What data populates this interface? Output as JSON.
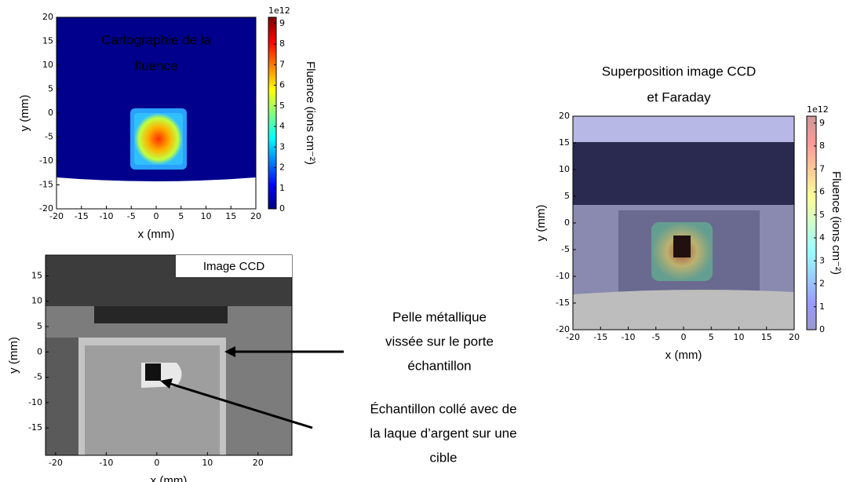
{
  "chart_data": [
    {
      "type": "heatmap",
      "title_lines": [
        "Cartographie de la",
        "fluence"
      ],
      "xlabel": "x (mm)",
      "ylabel": "y (mm)",
      "xlim": [
        -20,
        20
      ],
      "ylim": [
        -20,
        20
      ],
      "xticks": [
        -20,
        -15,
        -10,
        -5,
        0,
        5,
        10,
        15,
        20
      ],
      "yticks": [
        -20,
        -15,
        -10,
        -5,
        0,
        5,
        10,
        15,
        20
      ],
      "colorbar": {
        "label": "Fluence (ions cm⁻²)",
        "offset_label": "1e12",
        "lim": [
          0,
          9.3
        ],
        "ticks": [
          0,
          1,
          2,
          3,
          4,
          5,
          6,
          7,
          8,
          9
        ],
        "colormap": "jet"
      }
    },
    {
      "type": "image",
      "label": "Image CCD",
      "xlabel": "x (mm)",
      "ylabel": "y (mm)",
      "xlim": [
        -22,
        26.7
      ],
      "ylim": [
        -20.4,
        19.1
      ],
      "xticks": [
        -20,
        -10,
        0,
        10,
        20
      ],
      "yticks": [
        -15,
        -10,
        -5,
        0,
        5,
        10,
        15
      ]
    },
    {
      "type": "heatmap",
      "title_lines": [
        "Superposition image CCD",
        "et Faraday"
      ],
      "xlabel": "x (mm)",
      "ylabel": "y (mm)",
      "xlim": [
        -20,
        20
      ],
      "ylim": [
        -20,
        20
      ],
      "xticks": [
        -20,
        -15,
        -10,
        -5,
        0,
        5,
        10,
        15,
        20
      ],
      "yticks": [
        -20,
        -15,
        -10,
        -5,
        0,
        5,
        10,
        15,
        20
      ],
      "colorbar": {
        "label": "Fluence (ions cm⁻²)",
        "offset_label": "1e12",
        "lim": [
          0,
          9.3
        ],
        "ticks": [
          0,
          1,
          2,
          3,
          4,
          5,
          6,
          7,
          8,
          9
        ],
        "colormap": "jet",
        "alpha": 0.4
      }
    }
  ],
  "annotations": [
    {
      "lines": [
        "Pelle métallique",
        "vissée sur le porte",
        "échantillon"
      ]
    },
    {
      "lines": [
        "Échantillon collé avec de",
        "la laque d’argent sur une",
        "cible"
      ]
    }
  ]
}
